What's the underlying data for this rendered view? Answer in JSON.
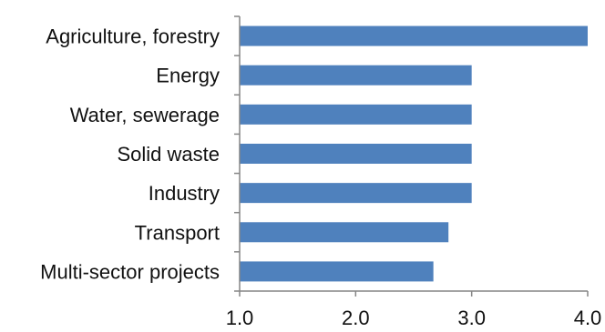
{
  "chart_data": {
    "type": "bar",
    "orientation": "horizontal",
    "categories": [
      "Agriculture, forestry",
      "Energy",
      "Water, sewerage",
      "Solid waste",
      "Industry",
      "Transport",
      "Multi-sector projects"
    ],
    "values": [
      4.0,
      3.0,
      3.0,
      3.0,
      3.0,
      2.8,
      2.67
    ],
    "xlim": [
      1.0,
      4.0
    ],
    "xticks": [
      "1.0",
      "2.0",
      "3.0",
      "4.0"
    ],
    "title": "",
    "xlabel": "",
    "ylabel": "",
    "grid": false,
    "legend": "none",
    "bar_color": "#4f81bd"
  }
}
